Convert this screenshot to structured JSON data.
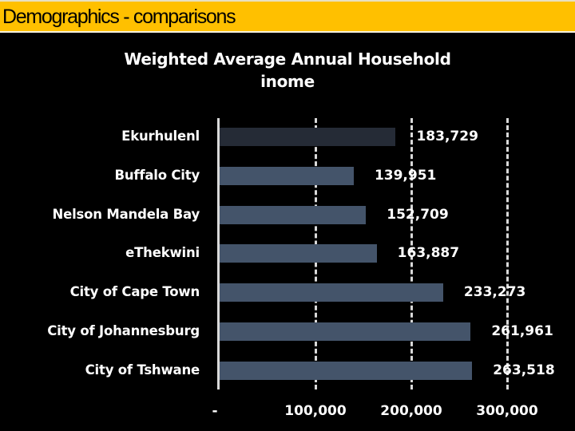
{
  "header": {
    "title": "Demographics - comparisons",
    "background": "#ffc000"
  },
  "chart_data": {
    "type": "bar",
    "orientation": "horizontal",
    "title": "Weighted Average Annual Household inome",
    "title_line1": "Weighted Average Annual Household",
    "title_line2": "inome",
    "categories": [
      "Ekurhulenl",
      "Buffalo City",
      "Nelson Mandela Bay",
      "eThekwini",
      "City of Cape Town",
      "City of Johannesburg",
      "City of Tshwane"
    ],
    "values": [
      183729,
      139951,
      152709,
      163887,
      233273,
      261961,
      263518
    ],
    "value_labels": [
      "183,729",
      "139,951",
      "152,709",
      "163,887",
      "233,273",
      "261,961",
      "263,518"
    ],
    "bar_colors": [
      "#252b36",
      "#44546a",
      "#44546a",
      "#44546a",
      "#44546a",
      "#44546a",
      "#44546a"
    ],
    "xlabel": "",
    "ylabel": "",
    "xlim": [
      0,
      300000
    ],
    "x_ticks": [
      0,
      100000,
      200000,
      300000
    ],
    "x_tick_labels": [
      "-",
      "100,000",
      "200,000",
      "300,000"
    ],
    "grid": "vertical dashed",
    "legend": "none",
    "background": "#000000"
  }
}
